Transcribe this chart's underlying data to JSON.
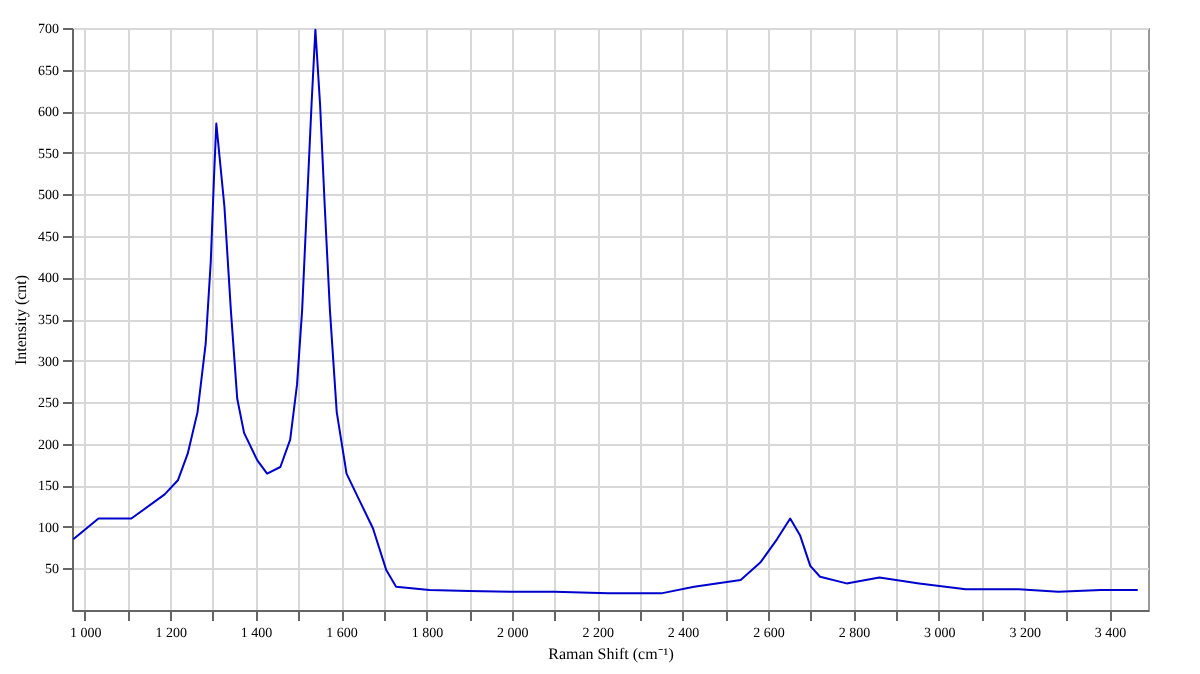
{
  "chart_data": {
    "type": "line",
    "xlabel": "Raman Shift (cm⁻¹)",
    "ylabel": "Intensity (cnt)",
    "x": [
      973,
      1032,
      1109,
      1187,
      1218,
      1241,
      1264,
      1283,
      1295,
      1303,
      1308,
      1327,
      1342,
      1357,
      1373,
      1404,
      1427,
      1458,
      1481,
      1497,
      1509,
      1520,
      1531,
      1540,
      1551,
      1562,
      1574,
      1590,
      1613,
      1644,
      1675,
      1706,
      1729,
      1807,
      1900,
      2000,
      2100,
      2226,
      2350,
      2427,
      2536,
      2582,
      2621,
      2652,
      2675,
      2699,
      2722,
      2784,
      2861,
      2954,
      3063,
      3187,
      3280,
      3380,
      3466
    ],
    "series": [
      {
        "color": "#0000cc",
        "values": [
          85,
          110,
          110,
          139,
          156,
          188,
          238,
          320,
          419,
          526,
          585,
          485,
          361,
          254,
          213,
          180,
          164,
          172,
          205,
          271,
          361,
          485,
          608,
          698,
          608,
          485,
          361,
          238,
          164,
          131,
          98,
          48,
          28,
          24,
          23,
          22,
          22,
          20,
          20,
          28,
          36,
          57,
          85,
          110,
          90,
          53,
          40,
          32,
          39,
          32,
          25,
          25,
          22,
          24,
          24
        ]
      }
    ],
    "xlim": [
      970,
      3490
    ],
    "xticks": [
      {
        "value": 1000,
        "label": "1 000"
      },
      {
        "value": 1100,
        "label": null
      },
      {
        "value": 1200,
        "label": "1 200"
      },
      {
        "value": 1300,
        "label": null
      },
      {
        "value": 1400,
        "label": "1 400"
      },
      {
        "value": 1500,
        "label": null
      },
      {
        "value": 1600,
        "label": "1 600"
      },
      {
        "value": 1700,
        "label": null
      },
      {
        "value": 1800,
        "label": "1 800"
      },
      {
        "value": 1900,
        "label": null
      },
      {
        "value": 2000,
        "label": "2 000"
      },
      {
        "value": 2100,
        "label": null
      },
      {
        "value": 2200,
        "label": "2 200"
      },
      {
        "value": 2300,
        "label": null
      },
      {
        "value": 2400,
        "label": "2 400"
      },
      {
        "value": 2500,
        "label": null
      },
      {
        "value": 2600,
        "label": "2 600"
      },
      {
        "value": 2700,
        "label": null
      },
      {
        "value": 2800,
        "label": "2 800"
      },
      {
        "value": 2900,
        "label": null
      },
      {
        "value": 3000,
        "label": "3 000"
      },
      {
        "value": 3100,
        "label": null
      },
      {
        "value": 3200,
        "label": "3 200"
      },
      {
        "value": 3300,
        "label": null
      },
      {
        "value": 3400,
        "label": "3 400"
      }
    ],
    "ylim": [
      0,
      700
    ],
    "yticks": [
      50,
      100,
      150,
      200,
      250,
      300,
      350,
      400,
      450,
      500,
      550,
      600,
      650,
      700
    ],
    "grid": true,
    "line_style": "solid"
  }
}
